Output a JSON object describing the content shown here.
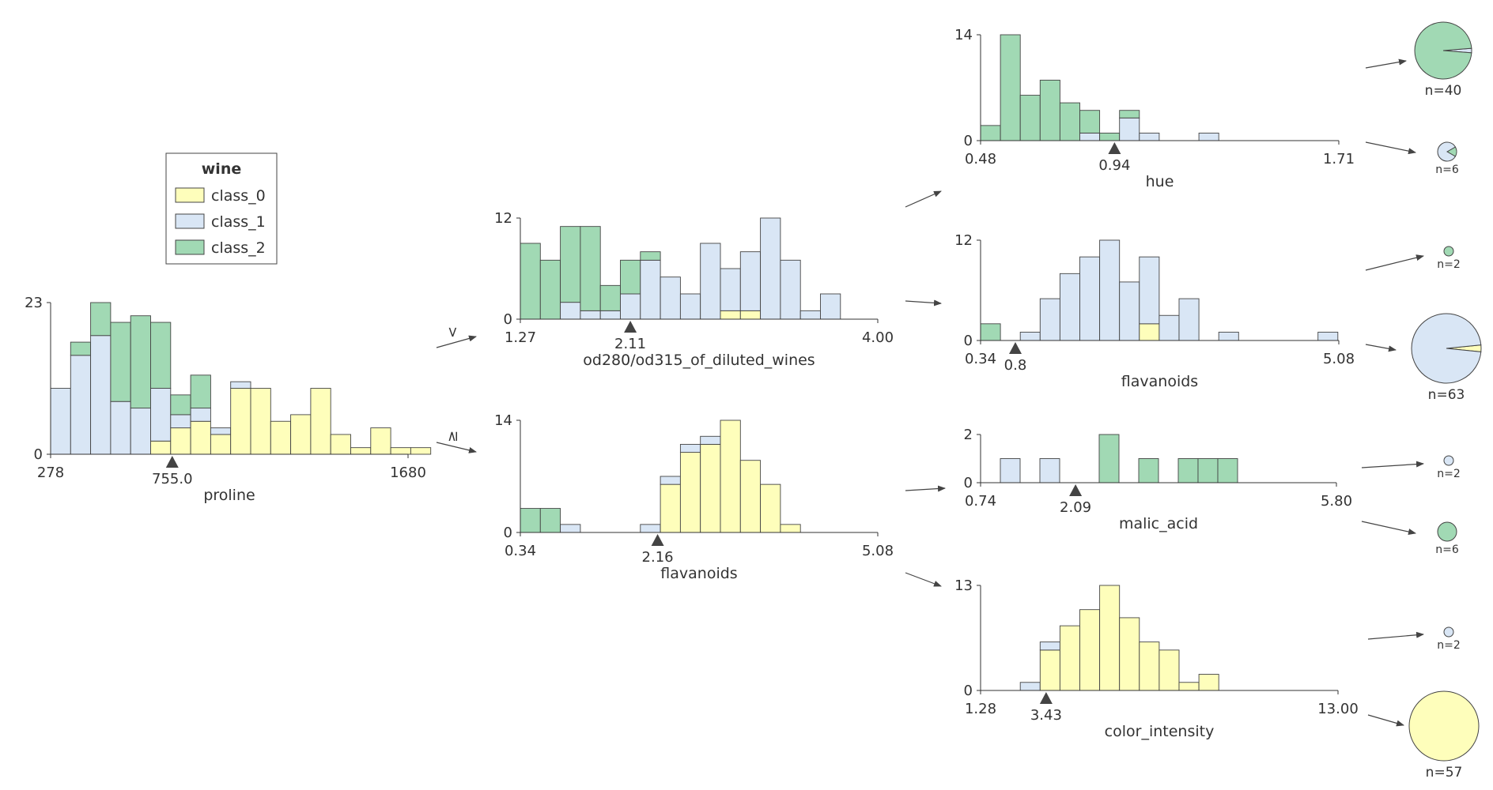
{
  "colors": {
    "class_0": "#fefebb",
    "class_1": "#d9e6f5",
    "class_2": "#a1d9b4",
    "edge": "#444444",
    "axis": "#333333",
    "text": "#333333"
  },
  "legend": {
    "title": "wine",
    "items": [
      {
        "label": "class_0",
        "color": "#fefebb"
      },
      {
        "label": "class_1",
        "color": "#d9e6f5"
      },
      {
        "label": "class_2",
        "color": "#a1d9b4"
      }
    ]
  },
  "branch_labels": {
    "less": "<",
    "greater_equal": "≥"
  },
  "chart_data": [
    {
      "type": "bar",
      "id": "root",
      "xlabel": "proline",
      "xlim": [
        278,
        1680
      ],
      "xticks": [
        "278",
        "1680"
      ],
      "ylim": [
        0,
        23
      ],
      "yticks": [
        "0",
        "23"
      ],
      "split": 755.0,
      "split_label": "755.0",
      "stacks": [
        [
          0,
          10,
          0
        ],
        [
          0,
          15,
          2
        ],
        [
          0,
          18,
          5
        ],
        [
          0,
          8,
          12
        ],
        [
          0,
          7,
          14
        ],
        [
          2,
          8,
          10
        ],
        [
          4,
          2,
          3
        ],
        [
          5,
          2,
          5
        ],
        [
          3,
          1,
          0
        ],
        [
          10,
          1,
          0
        ],
        [
          10,
          0,
          0
        ],
        [
          5,
          0,
          0
        ],
        [
          6,
          0,
          0
        ],
        [
          10,
          0,
          0
        ],
        [
          3,
          0,
          0
        ],
        [
          1,
          0,
          0
        ],
        [
          4,
          0,
          0
        ],
        [
          1,
          0,
          0
        ],
        [
          1,
          0,
          0
        ]
      ]
    },
    {
      "type": "bar",
      "id": "left",
      "xlabel": "od280/od315_of_diluted_wines",
      "xlim": [
        1.27,
        4.0
      ],
      "xticks": [
        "1.27",
        "4.00"
      ],
      "ylim": [
        0,
        12
      ],
      "yticks": [
        "0",
        "12"
      ],
      "split": 2.11,
      "split_label": "2.11",
      "stacks": [
        [
          0,
          0,
          9
        ],
        [
          0,
          0,
          7
        ],
        [
          0,
          2,
          9
        ],
        [
          0,
          1,
          10
        ],
        [
          0,
          1,
          3
        ],
        [
          0,
          3,
          4
        ],
        [
          0,
          7,
          1
        ],
        [
          0,
          5,
          0
        ],
        [
          0,
          3,
          0
        ],
        [
          0,
          9,
          0
        ],
        [
          1,
          5,
          0
        ],
        [
          1,
          7,
          0
        ],
        [
          0,
          12,
          0
        ],
        [
          0,
          7,
          0
        ],
        [
          0,
          1,
          0
        ],
        [
          0,
          3,
          0
        ]
      ]
    },
    {
      "type": "bar",
      "id": "right",
      "xlabel": "flavanoids",
      "xlim": [
        0.34,
        5.08
      ],
      "xticks": [
        "0.34",
        "5.08"
      ],
      "ylim": [
        0,
        14
      ],
      "yticks": [
        "0",
        "14"
      ],
      "split": 2.16,
      "split_label": "2.16",
      "stacks": [
        [
          0,
          0,
          3
        ],
        [
          0,
          0,
          3
        ],
        [
          0,
          1,
          0
        ],
        [
          0,
          0,
          0
        ],
        [
          0,
          0,
          0
        ],
        [
          0,
          0,
          0
        ],
        [
          0,
          1,
          0
        ],
        [
          6,
          1,
          0
        ],
        [
          10,
          1,
          0
        ],
        [
          11,
          1,
          0
        ],
        [
          14,
          0,
          0
        ],
        [
          9,
          0,
          0
        ],
        [
          6,
          0,
          0
        ],
        [
          1,
          0,
          0
        ]
      ]
    },
    {
      "type": "bar",
      "id": "hue",
      "xlabel": "hue",
      "xlim": [
        0.48,
        1.71
      ],
      "xticks": [
        "0.48",
        "1.71"
      ],
      "ylim": [
        0,
        14
      ],
      "yticks": [
        "0",
        "14"
      ],
      "split": 0.94,
      "split_label": "0.94",
      "stacks": [
        [
          0,
          0,
          2
        ],
        [
          0,
          0,
          14
        ],
        [
          0,
          0,
          6
        ],
        [
          0,
          0,
          8
        ],
        [
          0,
          0,
          5
        ],
        [
          0,
          1,
          3
        ],
        [
          0,
          0,
          1
        ],
        [
          0,
          3,
          1
        ],
        [
          0,
          1,
          0
        ],
        [
          0,
          0,
          0
        ],
        [
          0,
          0,
          0
        ],
        [
          0,
          1,
          0
        ],
        [
          0,
          0,
          0
        ],
        [
          0,
          0,
          0
        ],
        [
          0,
          0,
          0
        ],
        [
          0,
          0,
          0
        ],
        [
          0,
          0,
          0
        ],
        [
          0,
          0,
          0
        ]
      ]
    },
    {
      "type": "bar",
      "id": "flav2",
      "xlabel": "flavanoids",
      "xlim": [
        0.34,
        5.08
      ],
      "xticks": [
        "0.34",
        "5.08"
      ],
      "ylim": [
        0,
        12
      ],
      "yticks": [
        "0",
        "12"
      ],
      "split": 0.8,
      "split_label": "0.8",
      "stacks": [
        [
          0,
          0,
          2
        ],
        [
          0,
          0,
          0
        ],
        [
          0,
          1,
          0
        ],
        [
          0,
          5,
          0
        ],
        [
          0,
          8,
          0
        ],
        [
          0,
          10,
          0
        ],
        [
          0,
          12,
          0
        ],
        [
          0,
          7,
          0
        ],
        [
          2,
          8,
          0
        ],
        [
          0,
          3,
          0
        ],
        [
          0,
          5,
          0
        ],
        [
          0,
          0,
          0
        ],
        [
          0,
          1,
          0
        ],
        [
          0,
          0,
          0
        ],
        [
          0,
          0,
          0
        ],
        [
          0,
          0,
          0
        ],
        [
          0,
          0,
          0
        ],
        [
          0,
          1,
          0
        ]
      ]
    },
    {
      "type": "bar",
      "id": "malic",
      "xlabel": "malic_acid",
      "xlim": [
        0.74,
        5.8
      ],
      "xticks": [
        "0.74",
        "5.80"
      ],
      "ylim": [
        0,
        2
      ],
      "yticks": [
        "0",
        "2"
      ],
      "split": 2.09,
      "split_label": "2.09",
      "stacks": [
        [
          0,
          0,
          0
        ],
        [
          0,
          1,
          0
        ],
        [
          0,
          0,
          0
        ],
        [
          0,
          1,
          0
        ],
        [
          0,
          0,
          0
        ],
        [
          0,
          0,
          0
        ],
        [
          0,
          0,
          2
        ],
        [
          0,
          0,
          0
        ],
        [
          0,
          0,
          1
        ],
        [
          0,
          0,
          0
        ],
        [
          0,
          0,
          1
        ],
        [
          0,
          0,
          1
        ],
        [
          0,
          0,
          1
        ],
        [
          0,
          0,
          0
        ],
        [
          0,
          0,
          0
        ],
        [
          0,
          0,
          0
        ],
        [
          0,
          0,
          0
        ],
        [
          0,
          0,
          0
        ]
      ]
    },
    {
      "type": "bar",
      "id": "color",
      "xlabel": "color_intensity",
      "xlim": [
        1.28,
        13.0
      ],
      "xticks": [
        "1.28",
        "13.00"
      ],
      "ylim": [
        0,
        13
      ],
      "yticks": [
        "0",
        "13"
      ],
      "split": 3.43,
      "split_label": "3.43",
      "stacks": [
        [
          0,
          0,
          0
        ],
        [
          0,
          0,
          0
        ],
        [
          0,
          1,
          0
        ],
        [
          5,
          1,
          0
        ],
        [
          8,
          0,
          0
        ],
        [
          10,
          0,
          0
        ],
        [
          13,
          0,
          0
        ],
        [
          9,
          0,
          0
        ],
        [
          6,
          0,
          0
        ],
        [
          5,
          0,
          0
        ],
        [
          1,
          0,
          0
        ],
        [
          2,
          0,
          0
        ],
        [
          0,
          0,
          0
        ],
        [
          0,
          0,
          0
        ],
        [
          0,
          0,
          0
        ],
        [
          0,
          0,
          0
        ],
        [
          0,
          0,
          0
        ],
        [
          0,
          0,
          0
        ]
      ]
    },
    {
      "type": "pie",
      "id": "leaf1",
      "label": "n=40",
      "values": [
        0,
        1,
        39
      ]
    },
    {
      "type": "pie",
      "id": "leaf2",
      "label": "n=6",
      "values": [
        0,
        5,
        1
      ]
    },
    {
      "type": "pie",
      "id": "leaf3",
      "label": "n=2",
      "values": [
        0,
        0,
        2
      ]
    },
    {
      "type": "pie",
      "id": "leaf4",
      "label": "n=63",
      "values": [
        2,
        61,
        0
      ]
    },
    {
      "type": "pie",
      "id": "leaf5",
      "label": "n=2",
      "values": [
        0,
        2,
        0
      ]
    },
    {
      "type": "pie",
      "id": "leaf6",
      "label": "n=6",
      "values": [
        0,
        0,
        6
      ]
    },
    {
      "type": "pie",
      "id": "leaf7",
      "label": "n=2",
      "values": [
        0,
        2,
        0
      ]
    },
    {
      "type": "pie",
      "id": "leaf8",
      "label": "n=57",
      "values": [
        57,
        0,
        0
      ]
    }
  ]
}
